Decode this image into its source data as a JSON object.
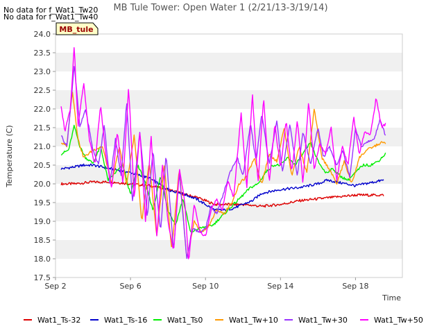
{
  "no_data_notes": [
    "No data for f_Wat1_Tw20",
    "No data for f_Wat1_Tw40"
  ],
  "chart_data": {
    "type": "line",
    "title": "MB Tule Tower: Open Water 1 (2/21/13-3/19/14)",
    "xlabel": "Time",
    "ylabel": "Temperature (C)",
    "ylim": [
      17.5,
      24.0
    ],
    "y_ticks": [
      "17.5",
      "18.0",
      "18.5",
      "19.0",
      "19.5",
      "20.0",
      "20.5",
      "21.0",
      "21.5",
      "22.0",
      "22.5",
      "23.0",
      "23.5",
      "24.0"
    ],
    "xlim": [
      "Sep 2",
      "Sep 20.5"
    ],
    "x_ticks": [
      "Sep 2",
      "Sep 6",
      "Sep 10",
      "Sep 14",
      "Sep 18"
    ],
    "grid": "alternating horizontal bands",
    "legend_placement": "bottom",
    "site_label": "MB_tule",
    "x_unit": "day of September",
    "series": [
      {
        "name": "Wat1_Ts-32",
        "color": "#dd0000",
        "x": [
          2.3,
          3,
          4,
          5,
          6,
          7,
          8,
          9,
          9.5,
          10,
          10.5,
          11,
          12,
          13,
          14,
          15,
          16,
          17,
          18,
          19,
          19.5
        ],
        "values": [
          20.0,
          20.0,
          20.05,
          20.05,
          20.0,
          19.95,
          19.85,
          19.7,
          19.65,
          19.55,
          19.45,
          19.45,
          19.45,
          19.4,
          19.45,
          19.55,
          19.6,
          19.65,
          19.7,
          19.7,
          19.7
        ]
      },
      {
        "name": "Wat1_Ts-16",
        "color": "#0000cc",
        "x": [
          2.3,
          3,
          3.5,
          4,
          5,
          6,
          7,
          8,
          9,
          9.5,
          10,
          10.5,
          11,
          11.5,
          12,
          12.5,
          13,
          14,
          15,
          16,
          16.5,
          17,
          17.5,
          18,
          18.5,
          19,
          19.5
        ],
        "values": [
          20.4,
          20.45,
          20.5,
          20.5,
          20.4,
          20.3,
          20.15,
          19.85,
          19.7,
          19.6,
          19.45,
          19.3,
          19.3,
          19.35,
          19.45,
          19.55,
          19.75,
          19.85,
          19.9,
          20.0,
          20.1,
          20.05,
          20.0,
          19.95,
          20.0,
          20.05,
          20.1
        ]
      },
      {
        "name": "Wat1_Ts0",
        "color": "#00ee00",
        "x": [
          2.3,
          2.7,
          3.0,
          3.3,
          3.6,
          4.0,
          4.4,
          4.8,
          5.2,
          5.6,
          6.0,
          6.4,
          6.8,
          7.2,
          7.6,
          8.0,
          8.4,
          8.8,
          9.2,
          9.6,
          10.0,
          10.4,
          10.8,
          11.2,
          11.6,
          12.0,
          12.4,
          12.8,
          13.2,
          13.6,
          14.0,
          14.4,
          14.8,
          15.2,
          15.6,
          16.0,
          16.4,
          16.8,
          17.2,
          17.6,
          18.0,
          18.4,
          18.8,
          19.2,
          19.6
        ],
        "values": [
          20.8,
          20.9,
          21.55,
          21.0,
          20.7,
          20.55,
          21.0,
          20.1,
          20.3,
          20.5,
          19.7,
          20.5,
          20.0,
          19.3,
          20.2,
          19.3,
          18.9,
          19.6,
          18.7,
          18.8,
          18.85,
          18.9,
          19.1,
          19.3,
          19.5,
          19.7,
          19.9,
          20.0,
          20.3,
          20.5,
          20.5,
          20.7,
          20.5,
          20.8,
          21.1,
          20.6,
          20.3,
          20.4,
          20.2,
          20.1,
          20.3,
          20.5,
          20.5,
          20.6,
          20.8
        ]
      },
      {
        "name": "Wat1_Tw+10",
        "color": "#ff9900",
        "x": [
          2.3,
          2.6,
          2.9,
          3.2,
          3.5,
          4.0,
          4.5,
          5.0,
          5.4,
          5.8,
          6.2,
          6.6,
          7.0,
          7.4,
          7.8,
          8.2,
          8.6,
          9.0,
          9.4,
          9.8,
          10.2,
          10.6,
          11.0,
          11.4,
          11.8,
          12.2,
          12.6,
          13.0,
          13.4,
          13.8,
          14.2,
          14.6,
          15.0,
          15.4,
          15.8,
          16.2,
          16.6,
          17.0,
          17.4,
          17.8,
          18.2,
          18.6,
          19.0,
          19.4,
          19.6
        ],
        "values": [
          21.1,
          21.0,
          22.5,
          21.2,
          20.7,
          20.9,
          21.0,
          20.0,
          21.0,
          20.0,
          21.3,
          19.0,
          20.6,
          18.6,
          20.5,
          18.2,
          20.4,
          18.0,
          19.0,
          18.7,
          18.9,
          19.3,
          19.2,
          19.5,
          20.0,
          20.2,
          20.7,
          20.0,
          20.8,
          20.6,
          21.5,
          20.2,
          21.0,
          20.3,
          22.0,
          20.7,
          20.4,
          20.0,
          20.6,
          20.0,
          20.7,
          20.9,
          21.0,
          21.1,
          21.1
        ]
      },
      {
        "name": "Wat1_Tw+30",
        "color": "#9933ff",
        "x": [
          2.3,
          2.6,
          2.8,
          3.0,
          3.3,
          3.6,
          4.0,
          4.3,
          4.6,
          4.9,
          5.2,
          5.5,
          5.8,
          6.1,
          6.5,
          6.9,
          7.2,
          7.6,
          7.9,
          8.3,
          8.6,
          9.0,
          9.3,
          9.7,
          10.0,
          10.3,
          10.6,
          11.0,
          11.3,
          11.7,
          12.0,
          12.4,
          12.7,
          13.0,
          13.4,
          13.8,
          14.1,
          14.5,
          14.9,
          15.2,
          15.6,
          16.0,
          16.3,
          16.6,
          17.0,
          17.3,
          17.7,
          18.0,
          18.3,
          18.6,
          19.0,
          19.3,
          19.6
        ],
        "values": [
          21.3,
          21.0,
          22.0,
          23.2,
          21.5,
          22.0,
          20.9,
          20.5,
          21.6,
          20.0,
          21.2,
          20.2,
          22.2,
          19.5,
          21.4,
          19.1,
          20.9,
          18.7,
          20.8,
          18.2,
          20.3,
          18.0,
          18.8,
          18.7,
          18.8,
          19.4,
          19.2,
          19.8,
          20.3,
          20.7,
          20.2,
          21.6,
          20.6,
          21.9,
          20.5,
          21.7,
          20.3,
          21.6,
          20.2,
          21.4,
          20.5,
          21.5,
          20.7,
          21.0,
          20.5,
          20.9,
          20.2,
          21.5,
          21.0,
          21.1,
          21.2,
          21.7,
          21.3
        ]
      },
      {
        "name": "Wat1_Tw+50",
        "color": "#ff00ff",
        "x": [
          2.3,
          2.5,
          2.8,
          3.0,
          3.2,
          3.5,
          3.8,
          4.1,
          4.4,
          4.7,
          5.0,
          5.3,
          5.6,
          5.9,
          6.2,
          6.5,
          6.8,
          7.1,
          7.4,
          7.7,
          8.0,
          8.3,
          8.6,
          8.9,
          9.1,
          9.4,
          9.7,
          10.0,
          10.3,
          10.6,
          10.9,
          11.2,
          11.5,
          11.9,
          12.2,
          12.5,
          12.8,
          13.1,
          13.4,
          13.7,
          14.0,
          14.3,
          14.6,
          14.9,
          15.2,
          15.5,
          15.8,
          16.1,
          16.4,
          16.7,
          17.0,
          17.3,
          17.6,
          17.9,
          18.2,
          18.5,
          18.8,
          19.1,
          19.4,
          19.6
        ],
        "values": [
          22.1,
          21.4,
          22.0,
          23.7,
          21.5,
          22.7,
          21.2,
          20.5,
          22.1,
          20.7,
          19.9,
          21.4,
          20.0,
          22.6,
          19.6,
          21.4,
          19.0,
          21.3,
          18.6,
          20.5,
          19.0,
          18.2,
          20.4,
          19.5,
          17.9,
          19.5,
          18.7,
          18.6,
          19.3,
          19.6,
          19.3,
          20.1,
          19.6,
          21.9,
          19.9,
          22.4,
          20.0,
          22.3,
          20.0,
          21.6,
          20.4,
          21.7,
          20.3,
          21.7,
          20.0,
          22.2,
          20.4,
          21.1,
          20.8,
          21.5,
          20.1,
          21.0,
          20.5,
          21.8,
          20.8,
          21.4,
          21.3,
          22.3,
          21.5,
          21.6
        ]
      }
    ]
  }
}
